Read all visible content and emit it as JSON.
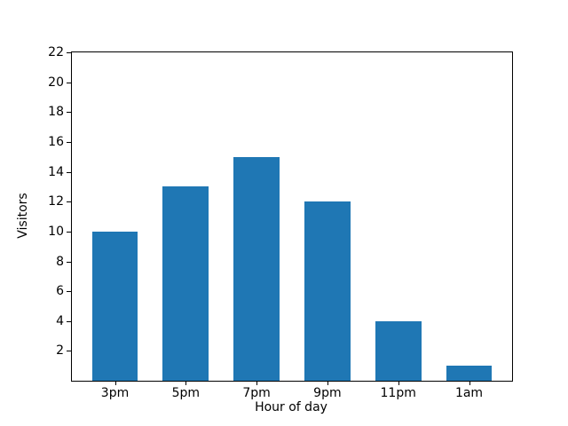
{
  "chart_data": {
    "type": "bar",
    "title": "",
    "xlabel": "Hour of day",
    "ylabel": "Visitors",
    "categories": [
      "3pm",
      "5pm",
      "7pm",
      "9pm",
      "11pm",
      "1am"
    ],
    "values": [
      10,
      13,
      15,
      12,
      4,
      1
    ],
    "ylim": [
      0,
      22
    ],
    "yticks": [
      2,
      4,
      6,
      8,
      10,
      12,
      14,
      16,
      18,
      20,
      22
    ],
    "bar_color": "#1f77b4",
    "bar_width_fraction": 0.65,
    "x_margin_fraction": 0.05,
    "grid": false,
    "legend": false,
    "background_color": "#ffffff",
    "spine_color": "#000000",
    "text_color": "#000000"
  }
}
